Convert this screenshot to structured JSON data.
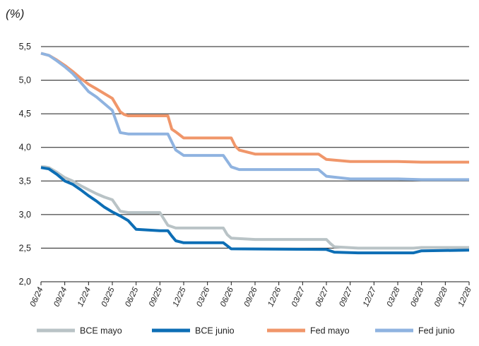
{
  "chart_data": {
    "type": "line",
    "unit_label": "(%)",
    "ylim": [
      2.0,
      5.5
    ],
    "y_ticks": [
      "2,0",
      "2,5",
      "3,0",
      "3,5",
      "4,0",
      "4,5",
      "5,0",
      "5,5"
    ],
    "y_tick_values": [
      2.0,
      2.5,
      3.0,
      3.5,
      4.0,
      4.5,
      5.0,
      5.5
    ],
    "x_ticks": [
      "06/24",
      "09/24",
      "12/24",
      "03/25",
      "06/25",
      "09/25",
      "12/25",
      "03/26",
      "06/26",
      "09/26",
      "12/26",
      "03/27",
      "06/27",
      "09/27",
      "12/27",
      "03/28",
      "06/28",
      "09/28",
      "12/28"
    ],
    "x_tick_months": [
      0,
      3,
      6,
      9,
      12,
      15,
      18,
      21,
      24,
      27,
      30,
      33,
      36,
      39,
      42,
      45,
      48,
      51,
      54
    ],
    "grid": "horizontal",
    "legend_position": "bottom",
    "series": [
      {
        "name": "BCE mayo",
        "color": "#b9c3c6",
        "x": [
          0,
          0.5,
          1,
          2,
          3,
          4,
          5,
          6,
          7,
          8,
          9,
          10,
          10.5,
          11,
          12,
          14,
          15,
          16,
          16.5,
          17,
          18,
          21,
          23,
          23.5,
          24,
          27,
          36,
          36.5,
          37,
          40,
          47,
          48,
          54
        ],
        "values": [
          3.71,
          3.71,
          3.7,
          3.63,
          3.55,
          3.5,
          3.43,
          3.37,
          3.31,
          3.26,
          3.22,
          3.05,
          3.04,
          3.03,
          3.03,
          3.03,
          3.03,
          2.84,
          2.82,
          2.8,
          2.8,
          2.8,
          2.8,
          2.7,
          2.65,
          2.63,
          2.63,
          2.57,
          2.52,
          2.5,
          2.5,
          2.51,
          2.51
        ]
      },
      {
        "name": "BCE junio",
        "color": "#0d6eb5",
        "x": [
          0,
          1,
          2,
          3,
          4,
          5,
          6,
          7,
          8,
          9,
          10,
          11,
          12,
          15,
          16,
          16.5,
          17,
          18,
          21,
          23,
          24,
          36,
          37,
          40,
          46,
          47,
          48,
          54
        ],
        "values": [
          3.7,
          3.68,
          3.6,
          3.5,
          3.45,
          3.37,
          3.28,
          3.2,
          3.11,
          3.04,
          2.98,
          2.91,
          2.78,
          2.76,
          2.76,
          2.68,
          2.61,
          2.58,
          2.58,
          2.58,
          2.49,
          2.48,
          2.44,
          2.43,
          2.43,
          2.43,
          2.46,
          2.47
        ]
      },
      {
        "name": "Fed mayo",
        "color": "#f0966a",
        "x": [
          0,
          1,
          2,
          3,
          4,
          5,
          6,
          7,
          8,
          9,
          10,
          10.5,
          11,
          12,
          15,
          16,
          16.5,
          17,
          18,
          21,
          23,
          24,
          24.5,
          25,
          27,
          34,
          35,
          36,
          39,
          44,
          45,
          48,
          54
        ],
        "values": [
          5.4,
          5.37,
          5.3,
          5.22,
          5.13,
          5.03,
          4.94,
          4.87,
          4.8,
          4.73,
          4.53,
          4.49,
          4.47,
          4.47,
          4.47,
          4.47,
          4.27,
          4.23,
          4.14,
          4.14,
          4.14,
          4.14,
          4.02,
          3.96,
          3.9,
          3.9,
          3.9,
          3.82,
          3.79,
          3.79,
          3.79,
          3.78,
          3.78
        ]
      },
      {
        "name": "Fed junio",
        "color": "#8fb3e0",
        "x": [
          0,
          1,
          2,
          3,
          4,
          5,
          6,
          7,
          8,
          9,
          10,
          11,
          12,
          15,
          16,
          17,
          18,
          21,
          23,
          24,
          25,
          27,
          35,
          36,
          39,
          45,
          48,
          54
        ],
        "values": [
          5.4,
          5.37,
          5.29,
          5.2,
          5.1,
          4.97,
          4.83,
          4.75,
          4.65,
          4.55,
          4.22,
          4.2,
          4.2,
          4.2,
          4.2,
          3.96,
          3.88,
          3.88,
          3.88,
          3.71,
          3.67,
          3.67,
          3.67,
          3.57,
          3.53,
          3.53,
          3.52,
          3.52
        ]
      }
    ]
  }
}
